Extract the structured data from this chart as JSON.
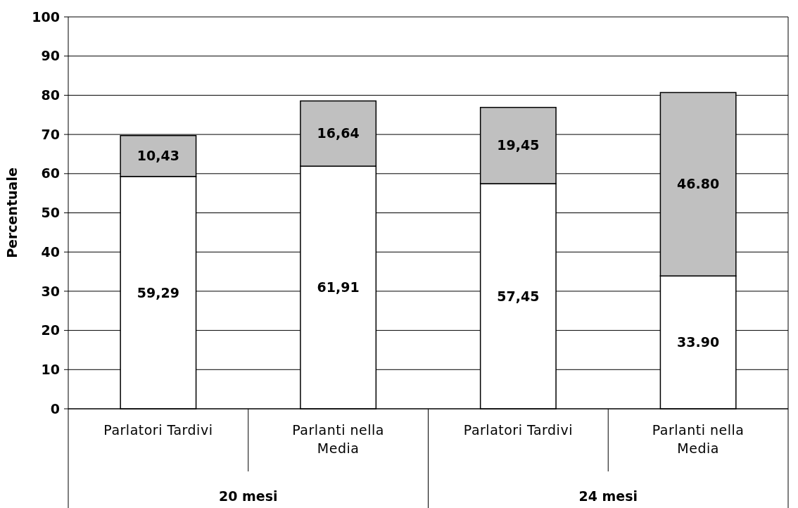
{
  "chart_data": {
    "type": "bar",
    "stacked": true,
    "ylabel": "Percentuale",
    "categories": [
      "Parlatori Tardivi",
      "Parlanti nella Media",
      "Parlatori Tardivi",
      "Parlanti nella Media"
    ],
    "series": [
      {
        "color": "#ffffff",
        "values": [
          59.29,
          61.91,
          57.45,
          33.9
        ],
        "value_labels": [
          "59,29",
          "61,91",
          "57,45",
          "33.90"
        ]
      },
      {
        "color": "#c0c0c0",
        "values": [
          10.43,
          16.64,
          19.45,
          46.8
        ],
        "value_labels": [
          "10,43",
          "16,64",
          "19,45",
          "46.80"
        ]
      }
    ],
    "annotations": [
      "20 mesi",
      "24 mesi"
    ],
    "ylim": [
      0,
      100
    ],
    "yticks": [
      0,
      10,
      20,
      30,
      40,
      50,
      60,
      70,
      80,
      90,
      100
    ],
    "grid": "y"
  }
}
